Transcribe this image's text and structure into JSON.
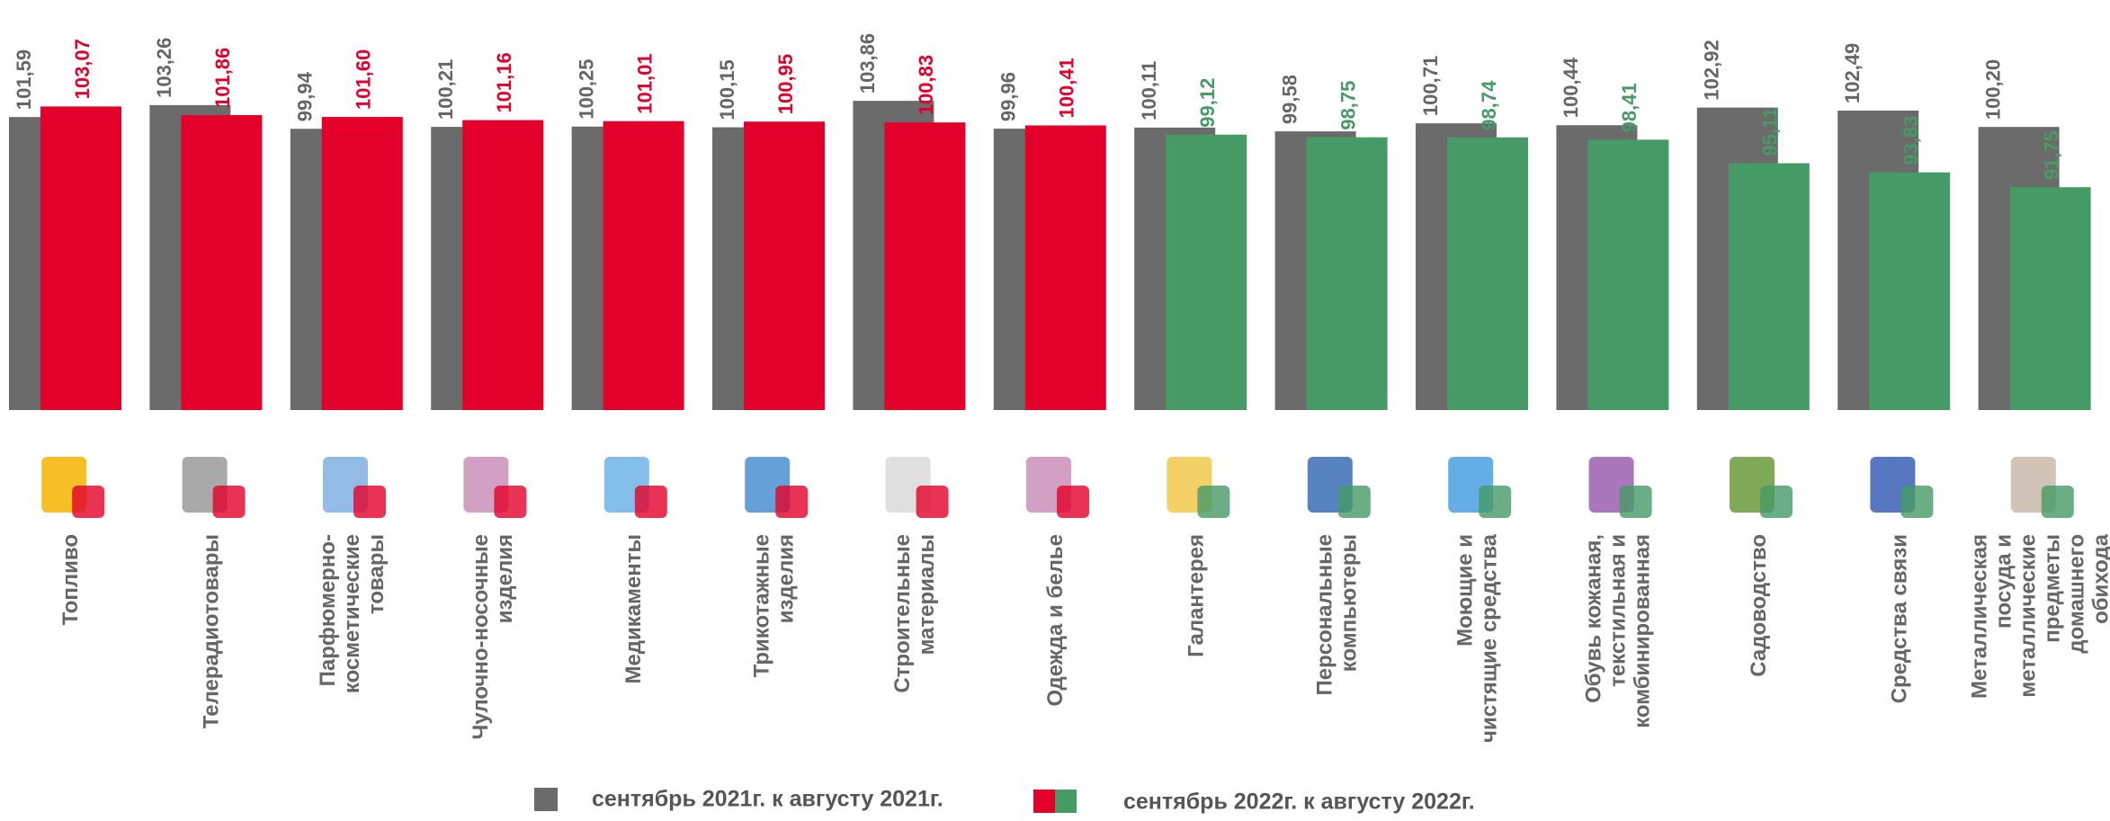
{
  "chart_data": {
    "type": "bar",
    "categories": [
      "Топливо",
      "Телерадиотовары",
      "Парфюмерно-\nкосметические\nтовары",
      "Чулочно-носочные\nизделия",
      "Медикаменты",
      "Трикотажные\nизделия",
      "Строительные\nматериалы",
      "Одежда и белье",
      "Галантерея",
      "Персональные\nкомпьютеры",
      "Моющие и\nчистящие средства",
      "Обувь кожаная,\nтекстильная и\nкомбинированная",
      "Садоводство",
      "Средства связи",
      "Металлическая\nпосуда и\nметаллические\nпредметы\nдомашнего\nобихода"
    ],
    "series": [
      {
        "name": "сентябрь 2021г. к августу 2021г.",
        "color": "#6b6b6b",
        "values": [
          101.59,
          103.26,
          99.94,
          100.21,
          100.25,
          100.15,
          103.86,
          99.96,
          100.11,
          99.58,
          100.71,
          100.44,
          102.92,
          102.49,
          100.2
        ],
        "value_labels": [
          "101,59",
          "103,26",
          "99,94",
          "100,21",
          "100,25",
          "100,15",
          "103,86",
          "99,96",
          "100,11",
          "99,58",
          "100,71",
          "100,44",
          "102,92",
          "102,49",
          "100,20"
        ]
      },
      {
        "name": "сентябрь 2022г. к августу 2022г.",
        "colors": [
          "#e3002b",
          "#e3002b",
          "#e3002b",
          "#e3002b",
          "#e3002b",
          "#e3002b",
          "#e3002b",
          "#e3002b",
          "#469a66",
          "#469a66",
          "#469a66",
          "#469a66",
          "#469a66",
          "#469a66",
          "#469a66"
        ],
        "values": [
          103.07,
          101.86,
          101.6,
          101.16,
          101.01,
          100.95,
          100.83,
          100.41,
          99.12,
          98.75,
          98.74,
          98.41,
          95.11,
          93.83,
          91.75
        ],
        "value_labels": [
          "103,07",
          "101,86",
          "101,60",
          "101,16",
          "101,01",
          "100,95",
          "100,83",
          "100,41",
          "99,12",
          "98,75",
          "98,74",
          "98,41",
          "95,11",
          "93,83",
          "91,75"
        ]
      }
    ],
    "ylim": [
      60.5,
      118
    ]
  }
}
